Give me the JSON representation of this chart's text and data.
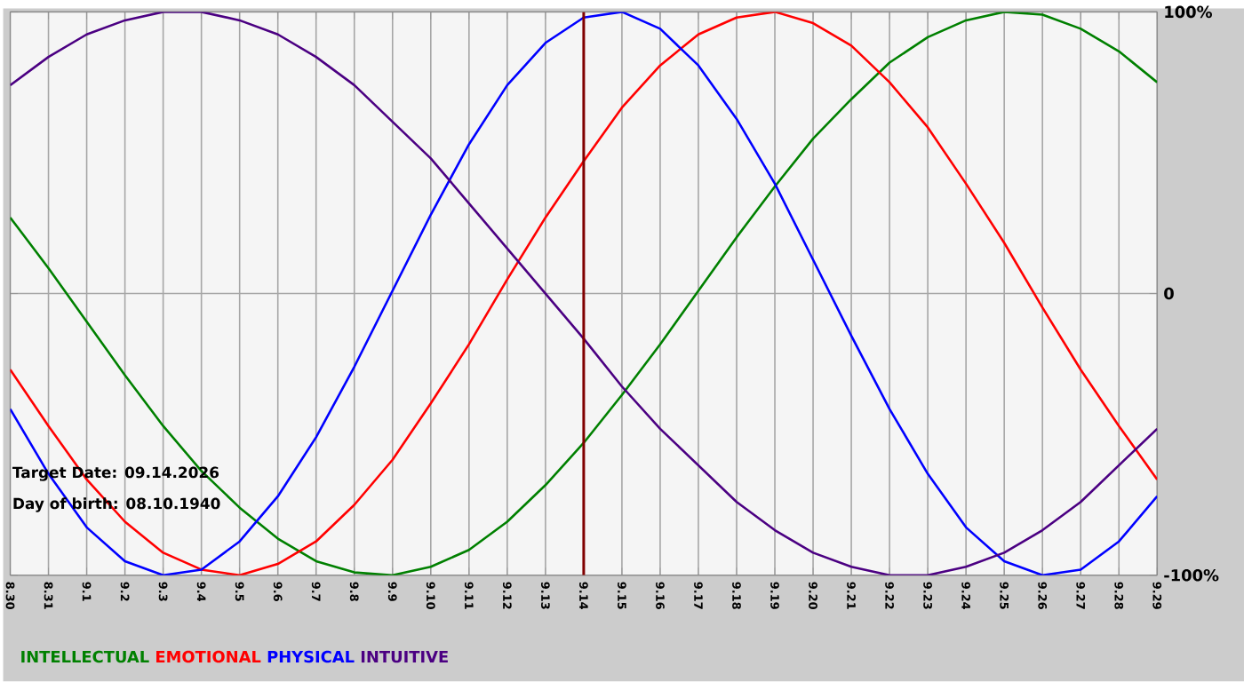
{
  "chart_data": {
    "type": "line",
    "categories": [
      "8.30",
      "8.31",
      "9.1",
      "9.2",
      "9.3",
      "9.4",
      "9.5",
      "9.6",
      "9.7",
      "9.8",
      "9.9",
      "9.10",
      "9.11",
      "9.12",
      "9.13",
      "9.14",
      "9.15",
      "9.16",
      "9.17",
      "9.18",
      "9.19",
      "9.20",
      "9.21",
      "9.22",
      "9.23",
      "9.24",
      "9.25",
      "9.26",
      "9.27",
      "9.28",
      "9.29"
    ],
    "series": [
      {
        "name": "INTELLECTUAL",
        "color": "#008000",
        "values": [
          27,
          9,
          -10,
          -29,
          -47,
          -63,
          -76,
          -87,
          -95,
          -99,
          -100,
          -97,
          -91,
          -81,
          -68,
          -53,
          -36,
          -18,
          1,
          20,
          38,
          55,
          69,
          82,
          91,
          97,
          100,
          99,
          94,
          86,
          75
        ]
      },
      {
        "name": "EMOTIONAL",
        "color": "#ff0000",
        "values": [
          -27,
          -47,
          -66,
          -81,
          -92,
          -98,
          -100,
          -96,
          -88,
          -75,
          -59,
          -39,
          -18,
          5,
          27,
          47,
          66,
          81,
          92,
          98,
          100,
          96,
          88,
          75,
          59,
          39,
          18,
          -5,
          -27,
          -47,
          -66
        ]
      },
      {
        "name": "PHYSICAL",
        "color": "#0000ff",
        "values": [
          -41,
          -64,
          -83,
          -95,
          -100,
          -98,
          -88,
          -72,
          -51,
          -26,
          1,
          28,
          53,
          74,
          89,
          98,
          100,
          94,
          81,
          62,
          39,
          12,
          -15,
          -41,
          -64,
          -83,
          -95,
          -100,
          -98,
          -88,
          -72
        ]
      },
      {
        "name": "INTUITIVE",
        "color": "#4b0082",
        "values": [
          74,
          84,
          92,
          97,
          100,
          100,
          97,
          92,
          84,
          74,
          61,
          48,
          32,
          16,
          0,
          -16,
          -33,
          -48,
          -61,
          -74,
          -84,
          -92,
          -97,
          -100,
          -100,
          -97,
          -92,
          -84,
          -74,
          -61,
          -48
        ]
      }
    ],
    "ylim": [
      -100,
      100
    ],
    "yticks": [
      {
        "value": 100,
        "label": "100%"
      },
      0,
      {
        "value": -100,
        "label": "-100%"
      }
    ],
    "grid": true,
    "legend": "bottom",
    "marker": "none",
    "line_style": "solid",
    "ref_lines": [
      {
        "axis": "x",
        "value": "9.14",
        "color": "#800000"
      }
    ],
    "annotations": [
      "Target Date: 09.14.2026",
      "Day of birth: 08.10.1940"
    ]
  }
}
